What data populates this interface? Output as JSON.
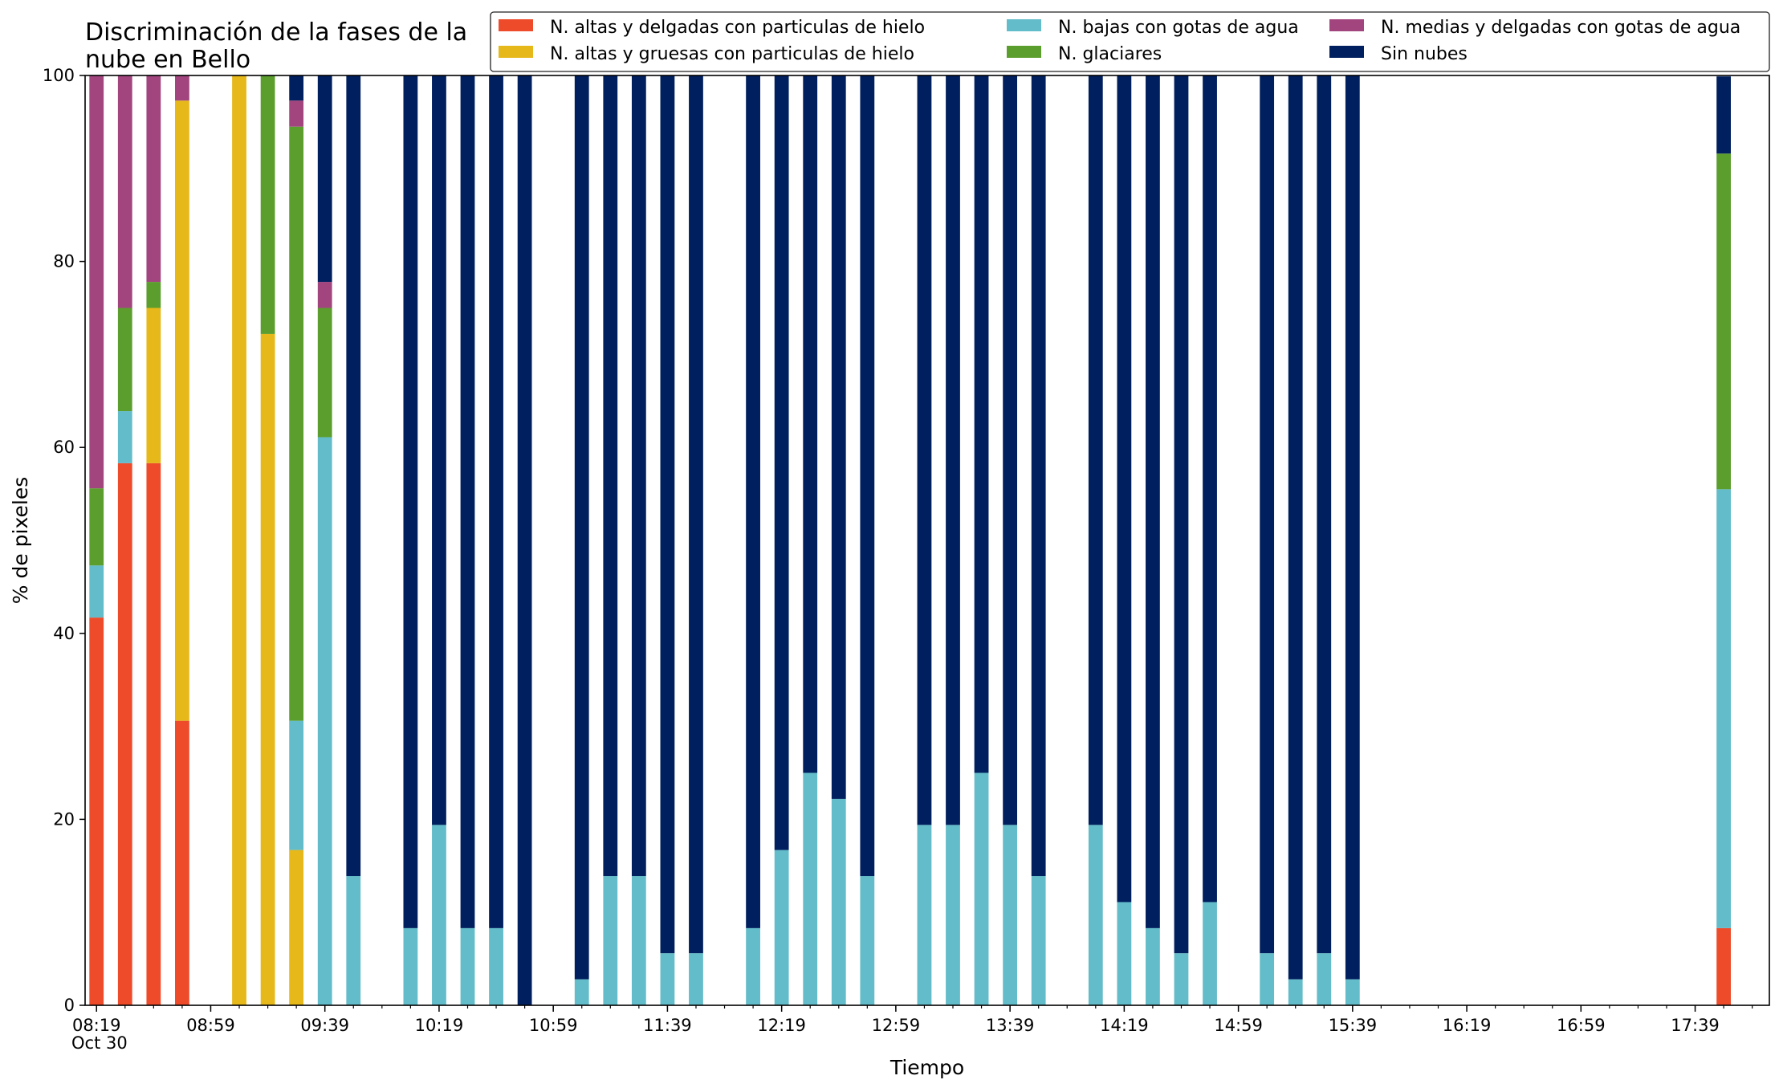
{
  "chart_data": {
    "type": "bar",
    "stacked": true,
    "title_line1": "Discriminación de la fases de la",
    "title_line2": "nube en Bello",
    "xlabel": "Tiempo",
    "ylabel": "% de pixeles",
    "ylim": [
      0,
      100
    ],
    "xlim": [
      "08:15",
      "18:05"
    ],
    "date_label": "Oct 30",
    "grid": false,
    "legend_position": "top-right",
    "bar_width_minutes": 5,
    "y_ticks": [
      {
        "value": 0,
        "label": "0"
      },
      {
        "value": 20,
        "label": "20"
      },
      {
        "value": 40,
        "label": "40"
      },
      {
        "value": 60,
        "label": "60"
      },
      {
        "value": 80,
        "label": "80"
      },
      {
        "value": 100,
        "label": "100"
      }
    ],
    "x_ticks": [
      {
        "time": "08:19",
        "label": "08:19"
      },
      {
        "time": "08:59",
        "label": "08:59"
      },
      {
        "time": "09:39",
        "label": "09:39"
      },
      {
        "time": "10:19",
        "label": "10:19"
      },
      {
        "time": "10:59",
        "label": "10:59"
      },
      {
        "time": "11:39",
        "label": "11:39"
      },
      {
        "time": "12:19",
        "label": "12:19"
      },
      {
        "time": "12:59",
        "label": "12:59"
      },
      {
        "time": "13:39",
        "label": "13:39"
      },
      {
        "time": "14:19",
        "label": "14:19"
      },
      {
        "time": "14:59",
        "label": "14:59"
      },
      {
        "time": "15:39",
        "label": "15:39"
      },
      {
        "time": "16:19",
        "label": "16:19"
      },
      {
        "time": "16:59",
        "label": "16:59"
      },
      {
        "time": "17:39",
        "label": "17:39"
      }
    ],
    "minor_tick_interval_minutes": 10,
    "series": [
      {
        "name": "N. altas y delgadas con particulas de hielo",
        "color": "#ee4b2b"
      },
      {
        "name": "N. altas y gruesas con particulas de hielo",
        "color": "#e6b81a"
      },
      {
        "name": "N. bajas con gotas de agua",
        "color": "#63bcc9"
      },
      {
        "name": "N. glaciares",
        "color": "#5c9e2e"
      },
      {
        "name": "N. medias y delgadas con gotas de agua",
        "color": "#a2457e"
      },
      {
        "name": "Sin nubes",
        "color": "#001f5e"
      }
    ],
    "bars": [
      {
        "time": "08:19",
        "values": [
          41.7,
          0,
          5.6,
          8.3,
          44.4,
          0
        ]
      },
      {
        "time": "08:29",
        "values": [
          58.3,
          0,
          5.6,
          11.1,
          25.0,
          0
        ]
      },
      {
        "time": "08:39",
        "values": [
          58.3,
          16.7,
          0,
          2.8,
          22.2,
          0
        ]
      },
      {
        "time": "08:49",
        "values": [
          30.6,
          66.7,
          0,
          0,
          2.8,
          0
        ]
      },
      {
        "time": "09:09",
        "values": [
          0,
          100,
          0,
          0,
          0,
          0
        ]
      },
      {
        "time": "09:19",
        "values": [
          0,
          72.2,
          0,
          27.8,
          0,
          0
        ]
      },
      {
        "time": "09:29",
        "values": [
          0,
          16.7,
          13.9,
          63.9,
          2.8,
          2.8
        ]
      },
      {
        "time": "09:39",
        "values": [
          0,
          0,
          61.1,
          13.9,
          2.8,
          22.2
        ]
      },
      {
        "time": "09:49",
        "values": [
          0,
          0,
          13.9,
          0,
          0,
          86.1
        ]
      },
      {
        "time": "10:09",
        "values": [
          0,
          0,
          8.3,
          0,
          0,
          91.7
        ]
      },
      {
        "time": "10:19",
        "values": [
          0,
          0,
          19.4,
          0,
          0,
          80.6
        ]
      },
      {
        "time": "10:29",
        "values": [
          0,
          0,
          8.3,
          0,
          0,
          91.7
        ]
      },
      {
        "time": "10:39",
        "values": [
          0,
          0,
          8.3,
          0,
          0,
          91.7
        ]
      },
      {
        "time": "10:49",
        "values": [
          0,
          0,
          0,
          0,
          0,
          100
        ]
      },
      {
        "time": "11:09",
        "values": [
          0,
          0,
          2.8,
          0,
          0,
          97.2
        ]
      },
      {
        "time": "11:19",
        "values": [
          0,
          0,
          13.9,
          0,
          0,
          86.1
        ]
      },
      {
        "time": "11:29",
        "values": [
          0,
          0,
          13.9,
          0,
          0,
          86.1
        ]
      },
      {
        "time": "11:39",
        "values": [
          0,
          0,
          5.6,
          0,
          0,
          94.4
        ]
      },
      {
        "time": "11:49",
        "values": [
          0,
          0,
          5.6,
          0,
          0,
          94.4
        ]
      },
      {
        "time": "12:09",
        "values": [
          0,
          0,
          8.3,
          0,
          0,
          91.7
        ]
      },
      {
        "time": "12:19",
        "values": [
          0,
          0,
          16.7,
          0,
          0,
          83.3
        ]
      },
      {
        "time": "12:29",
        "values": [
          0,
          0,
          25.0,
          0,
          0,
          75.0
        ]
      },
      {
        "time": "12:39",
        "values": [
          0,
          0,
          22.2,
          0,
          0,
          77.8
        ]
      },
      {
        "time": "12:49",
        "values": [
          0,
          0,
          13.9,
          0,
          0,
          86.1
        ]
      },
      {
        "time": "13:09",
        "values": [
          0,
          0,
          19.4,
          0,
          0,
          80.6
        ]
      },
      {
        "time": "13:19",
        "values": [
          0,
          0,
          19.4,
          0,
          0,
          80.6
        ]
      },
      {
        "time": "13:29",
        "values": [
          0,
          0,
          25.0,
          0,
          0,
          75.0
        ]
      },
      {
        "time": "13:39",
        "values": [
          0,
          0,
          19.4,
          0,
          0,
          80.6
        ]
      },
      {
        "time": "13:49",
        "values": [
          0,
          0,
          13.9,
          0,
          0,
          86.1
        ]
      },
      {
        "time": "14:09",
        "values": [
          0,
          0,
          19.4,
          0,
          0,
          80.6
        ]
      },
      {
        "time": "14:19",
        "values": [
          0,
          0,
          11.1,
          0,
          0,
          88.9
        ]
      },
      {
        "time": "14:29",
        "values": [
          0,
          0,
          8.3,
          0,
          0,
          91.7
        ]
      },
      {
        "time": "14:39",
        "values": [
          0,
          0,
          5.6,
          0,
          0,
          94.4
        ]
      },
      {
        "time": "14:49",
        "values": [
          0,
          0,
          11.1,
          0,
          0,
          88.9
        ]
      },
      {
        "time": "15:09",
        "values": [
          0,
          0,
          5.6,
          0,
          0,
          94.4
        ]
      },
      {
        "time": "15:19",
        "values": [
          0,
          0,
          2.8,
          0,
          0,
          97.2
        ]
      },
      {
        "time": "15:29",
        "values": [
          0,
          0,
          5.6,
          0,
          0,
          94.4
        ]
      },
      {
        "time": "15:39",
        "values": [
          0,
          0,
          2.8,
          0,
          0,
          97.2
        ]
      },
      {
        "time": "17:49",
        "values": [
          8.3,
          0,
          47.2,
          36.1,
          0,
          8.3
        ]
      }
    ]
  }
}
